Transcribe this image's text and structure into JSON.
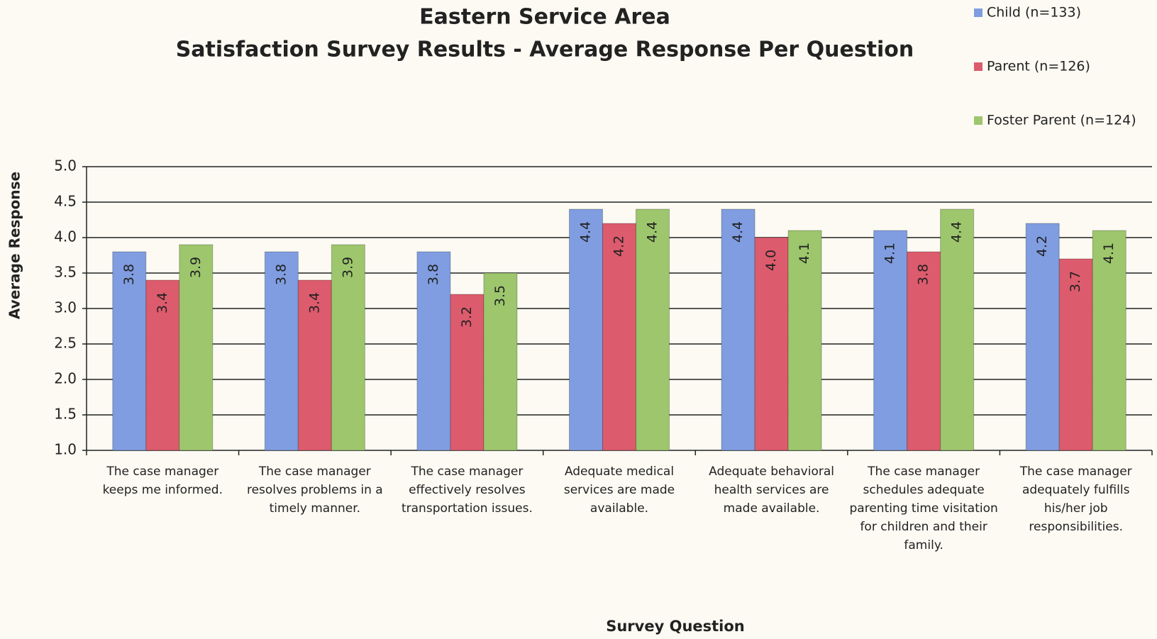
{
  "chart_data": {
    "type": "bar",
    "title": "Eastern Service Area",
    "subtitle": "Satisfaction Survey Results - Average Response Per Question",
    "x_label": "Survey Question",
    "y_label": "Average Response",
    "categories": [
      "The case manager keeps me informed.",
      "The case manager resolves problems in a timely manner.",
      "The case manager effectively resolves transportation issues.",
      "Adequate medical services are made available.",
      "Adequate behavioral health services are made available.",
      "The case manager schedules adequate parenting time visitation for children and their family.",
      "The case manager adequately fulfills his/her job responsibilities."
    ],
    "series": [
      {
        "name": "Child (n=133)",
        "color": "#7f9de0",
        "values": [
          3.8,
          3.8,
          3.8,
          4.4,
          4.4,
          4.1,
          4.2
        ],
        "value_labels": [
          "3.8",
          "3.8",
          "3.8",
          "4.4",
          "4.4",
          "4.1",
          "4.2"
        ]
      },
      {
        "name": "Parent (n=126)",
        "color": "#dc5b6d",
        "values": [
          3.4,
          3.4,
          3.2,
          4.2,
          4,
          3.8,
          3.7
        ],
        "value_labels": [
          "3.4",
          "3.4",
          "3.2",
          "4.2",
          "4.0",
          "3.8",
          "3.7"
        ]
      },
      {
        "name": "Foster Parent (n=124)",
        "color": "#9dc66d",
        "values": [
          3.9,
          3.9,
          3.5,
          4.4,
          4.1,
          4.4,
          4.1
        ],
        "value_labels": [
          "3.9",
          "3.9",
          "3.5",
          "4.4",
          "4.1",
          "4.4",
          "4.1"
        ]
      }
    ],
    "ylim": [
      1,
      5
    ],
    "yticks": [
      {
        "value": 1,
        "label": "1.0"
      },
      1.5,
      {
        "value": 2,
        "label": "2.0"
      },
      2.5,
      {
        "value": 3,
        "label": "3.0"
      },
      3.5,
      {
        "value": 4,
        "label": "4.0"
      },
      4.5,
      {
        "value": 5,
        "label": "5.0"
      }
    ],
    "grid": true,
    "legend": "top-right"
  }
}
